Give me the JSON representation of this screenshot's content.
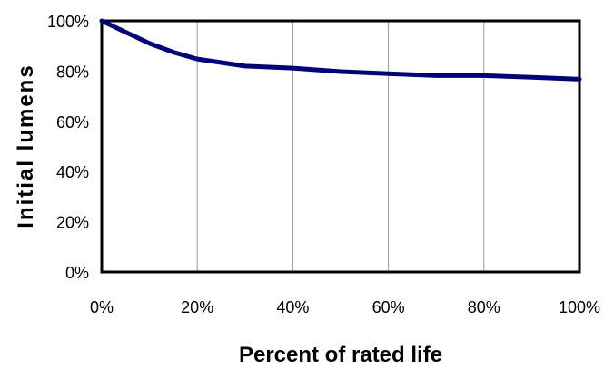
{
  "chart_data": {
    "type": "line",
    "xlabel": "Percent of rated life",
    "ylabel": "Initial lumens",
    "xlim": [
      0,
      100
    ],
    "ylim": [
      0,
      100
    ],
    "x_ticks": [
      "0%",
      "20%",
      "40%",
      "60%",
      "80%",
      "100%"
    ],
    "y_ticks": [
      "0%",
      "20%",
      "40%",
      "60%",
      "80%",
      "100%"
    ],
    "grid": "vertical",
    "line_color": "#000080",
    "series": [
      {
        "x": [
          0,
          5,
          10,
          15,
          20,
          30,
          40,
          50,
          60,
          70,
          80,
          90,
          100
        ],
        "y": [
          100,
          95.5,
          91,
          87.5,
          84.8,
          82,
          81.2,
          79.8,
          79,
          78.2,
          78.2,
          77.5,
          76.8
        ]
      }
    ]
  }
}
